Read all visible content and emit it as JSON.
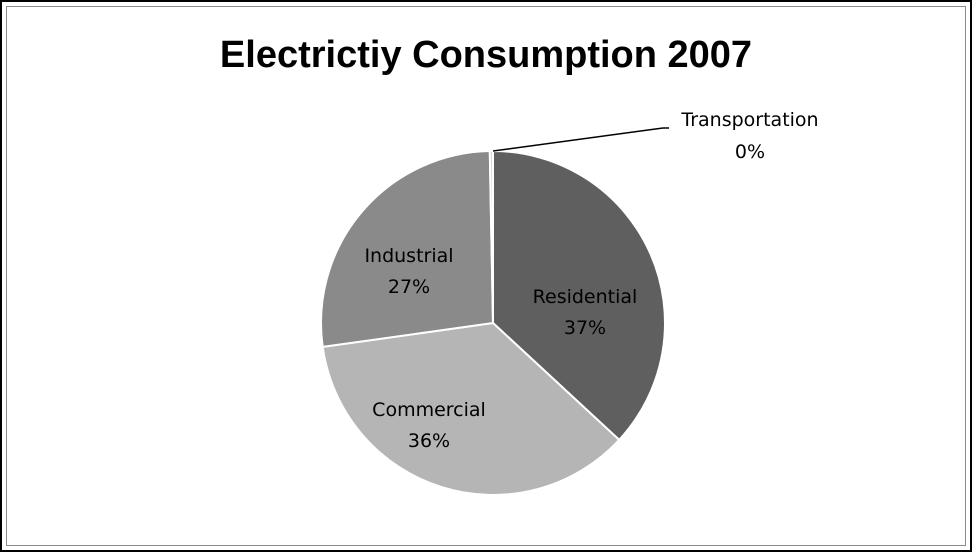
{
  "chart_data": {
    "type": "pie",
    "title": "Electrictiy Consumption 2007",
    "categories": [
      "Residential",
      "Commercial",
      "Industrial",
      "Transportation"
    ],
    "values": [
      37,
      36,
      27,
      0.3
    ],
    "labels": [
      "37%",
      "36%",
      "27%",
      "0%"
    ],
    "start_angle_deg": 0,
    "direction": "clockwise",
    "legend": "none",
    "colors": [
      "#5f5f5f",
      "#b5b5b5",
      "#8a8a8a",
      "#d8d8d8"
    ],
    "slice_border_color": "#ffffff"
  }
}
